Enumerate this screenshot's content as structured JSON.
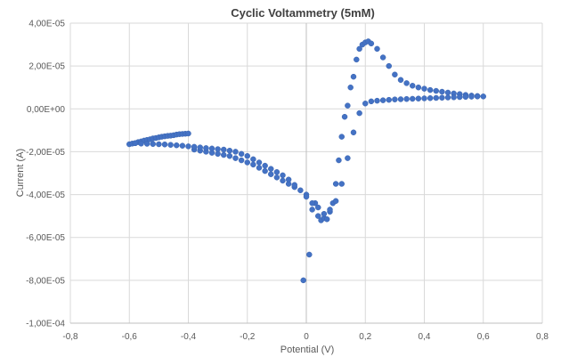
{
  "chart_data": {
    "type": "scatter",
    "title": "Cyclic Voltammetry (5mM)",
    "xlabel": "Potential (V)",
    "ylabel": "Current (A)",
    "xlim": [
      -0.8,
      0.8
    ],
    "ylim": [
      -0.0001,
      4e-05
    ],
    "x_ticks": [
      -0.8,
      -0.6,
      -0.4,
      -0.2,
      0,
      0.2,
      0.4,
      0.6,
      0.8
    ],
    "x_tick_labels": [
      "-0,8",
      "-0,6",
      "-0,4",
      "-0,2",
      "0",
      "0,2",
      "0,4",
      "0,6",
      "0,8"
    ],
    "y_ticks": [
      4e-05,
      2e-05,
      0,
      -2e-05,
      -4e-05,
      -6e-05,
      -8e-05,
      -0.0001
    ],
    "y_tick_labels": [
      "4,00E-05",
      "2,00E-05",
      "0,00E+00",
      "-2,00E-05",
      "-4,00E-05",
      "-6,00E-05",
      "-8,00E-05",
      "-1,00E-04"
    ],
    "grid": true,
    "marker_color": "#4472c4",
    "series": [
      {
        "x": [
          -0.6,
          -0.59,
          -0.58,
          -0.57,
          -0.56,
          -0.55,
          -0.54,
          -0.53,
          -0.52,
          -0.51,
          -0.5,
          -0.49,
          -0.48,
          -0.47,
          -0.46,
          -0.45,
          -0.44,
          -0.43,
          -0.42,
          -0.41,
          -0.4,
          -0.38,
          -0.36,
          -0.34,
          -0.32,
          -0.3,
          -0.28,
          -0.26,
          -0.24,
          -0.22,
          -0.2,
          -0.18,
          -0.16,
          -0.14,
          -0.12,
          -0.1,
          -0.08,
          -0.06,
          -0.04,
          -0.02,
          -0.01,
          0.0,
          0.01,
          0.02,
          0.03,
          0.04,
          0.05,
          0.06,
          0.07,
          0.08,
          0.09,
          0.1,
          0.11,
          0.12,
          0.13,
          0.14,
          0.15,
          0.16,
          0.17,
          0.18,
          0.19,
          0.2,
          0.21,
          0.22,
          0.24,
          0.26,
          0.28,
          0.3,
          0.32,
          0.34,
          0.36,
          0.38,
          0.4,
          0.42,
          0.44,
          0.46,
          0.48,
          0.5,
          0.52,
          0.54,
          0.56,
          0.58,
          0.6
        ],
        "y": [
          -1.65e-05,
          -1.62e-05,
          -1.6e-05,
          -1.55e-05,
          -1.52e-05,
          -1.48e-05,
          -1.45e-05,
          -1.42e-05,
          -1.38e-05,
          -1.36e-05,
          -1.33e-05,
          -1.3e-05,
          -1.28e-05,
          -1.26e-05,
          -1.25e-05,
          -1.23e-05,
          -1.2e-05,
          -1.18e-05,
          -1.17e-05,
          -1.16e-05,
          -1.15e-05,
          -1.9e-05,
          -1.95e-05,
          -2e-05,
          -2.05e-05,
          -2.1e-05,
          -2.15e-05,
          -2.2e-05,
          -2.3e-05,
          -2.4e-05,
          -2.5e-05,
          -2.6e-05,
          -2.75e-05,
          -2.9e-05,
          -3.05e-05,
          -3.2e-05,
          -3.35e-05,
          -3.5e-05,
          -3.65e-05,
          -3.8e-05,
          -8e-05,
          -4e-05,
          -6.8e-05,
          -4.7e-05,
          -4.4e-05,
          -5e-05,
          -5.2e-05,
          -5.1e-05,
          -5.15e-05,
          -4.8e-05,
          -4.4e-05,
          -3.5e-05,
          -2.4e-05,
          -1.3e-05,
          -3.7e-06,
          1.5e-06,
          1e-05,
          1.5e-05,
          2.3e-05,
          2.8e-05,
          3e-05,
          3.1e-05,
          3.15e-05,
          3.05e-05,
          2.8e-05,
          2.4e-05,
          2e-05,
          1.6e-05,
          1.35e-05,
          1.2e-05,
          1.08e-05,
          1e-05,
          9.4e-06,
          8.8e-06,
          8.4e-06,
          8e-06,
          7.6e-06,
          7.2e-06,
          6.9e-06,
          6.5e-06,
          6.2e-06,
          6e-06,
          5.8e-06
        ]
      },
      {
        "x": [
          -0.58,
          -0.56,
          -0.54,
          -0.52,
          -0.5,
          -0.48,
          -0.46,
          -0.44,
          -0.42,
          -0.4,
          -0.38,
          -0.36,
          -0.34,
          -0.32,
          -0.3,
          -0.28,
          -0.26,
          -0.24,
          -0.22,
          -0.2,
          -0.18,
          -0.16,
          -0.14,
          -0.12,
          -0.1,
          -0.08,
          -0.06,
          -0.04,
          0.0,
          0.02,
          0.04,
          0.06,
          0.08,
          0.1,
          0.12,
          0.14,
          0.16,
          0.18,
          0.2,
          0.22,
          0.24,
          0.26,
          0.28,
          0.3,
          0.32,
          0.34,
          0.36,
          0.38,
          0.4,
          0.42,
          0.44,
          0.46,
          0.48,
          0.5,
          0.52,
          0.54,
          0.56,
          0.58
        ],
        "y": [
          -1.6e-05,
          -1.62e-05,
          -1.63e-05,
          -1.64e-05,
          -1.65e-05,
          -1.66e-05,
          -1.68e-05,
          -1.7e-05,
          -1.72e-05,
          -1.75e-05,
          -1.77e-05,
          -1.8e-05,
          -1.83e-05,
          -1.85e-05,
          -1.88e-05,
          -1.9e-05,
          -1.95e-05,
          -2e-05,
          -2.1e-05,
          -2.2e-05,
          -2.35e-05,
          -2.5e-05,
          -2.65e-05,
          -2.8e-05,
          -2.95e-05,
          -3.1e-05,
          -3.3e-05,
          -3.55e-05,
          -4.1e-05,
          -4.4e-05,
          -4.6e-05,
          -4.9e-05,
          -4.7e-05,
          -4.3e-05,
          -3.5e-05,
          -2.3e-05,
          -1.1e-05,
          -2e-06,
          2.5e-06,
          3.5e-06,
          3.8e-06,
          4e-06,
          4.2e-06,
          4.4e-06,
          4.5e-06,
          4.6e-06,
          4.7e-06,
          4.8e-06,
          4.9e-06,
          5e-06,
          5.1e-06,
          5.2e-06,
          5.3e-06,
          5.4e-06,
          5.5e-06,
          5.6e-06,
          5.7e-06,
          5.8e-06
        ]
      }
    ]
  }
}
